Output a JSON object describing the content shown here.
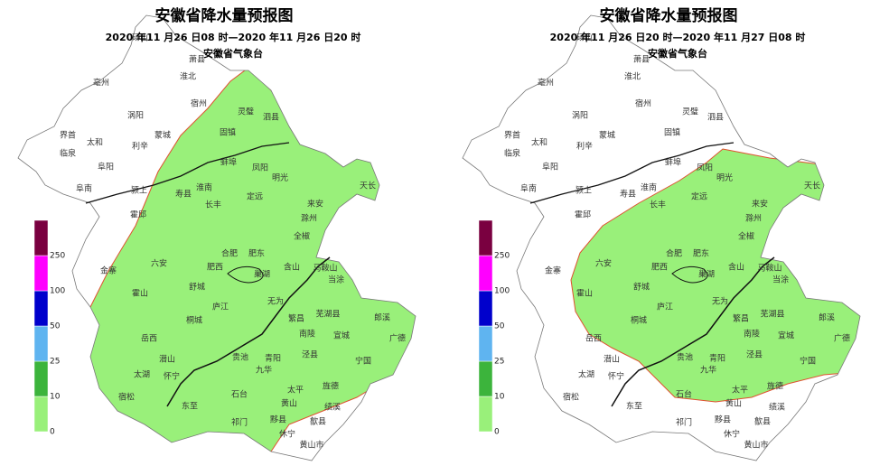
{
  "panels": [
    {
      "title": "安徽省降水量预报图",
      "period": "2020 年11 月26 日08 时—2020 年11 月26 日20 时",
      "issuer": "安徽省气象台"
    },
    {
      "title": "安徽省降水量预报图",
      "period": "2020 年11 月26 日20 时—2020 年11 月27 日08 时",
      "issuer": "安徽省气象台"
    }
  ],
  "legend": {
    "levels": [
      0,
      10,
      25,
      50,
      100,
      250
    ],
    "colors": [
      "#99f07a",
      "#3cb43c",
      "#5fb4f0",
      "#0000cc",
      "#ff00ff",
      "#7a0040"
    ]
  },
  "place_names": [
    "砀山",
    "萧县",
    "淮北",
    "亳州",
    "宿州",
    "涡阳",
    "灵璧",
    "泗县",
    "蒙城",
    "固镇",
    "界首",
    "太和",
    "利辛",
    "临泉",
    "阜阳",
    "蚌埠",
    "凤阳",
    "明光",
    "天长",
    "阜南",
    "颍上",
    "淮南",
    "寿县",
    "定远",
    "长丰",
    "来安",
    "霍邱",
    "滁州",
    "全椒",
    "金寨",
    "六安",
    "合肥",
    "肥东",
    "肥西",
    "含山",
    "马鞍山",
    "巢湖",
    "当涂",
    "霍山",
    "舒城",
    "庐江",
    "无为",
    "郎溪",
    "芜湖县",
    "桐城",
    "繁昌",
    "南陵",
    "广德",
    "岳西",
    "宣城",
    "潜山",
    "贵池",
    "青阳",
    "泾县",
    "宁国",
    "太湖",
    "怀宁",
    "九华",
    "太平",
    "旌德",
    "宿松",
    "石台",
    "黄山",
    "绩溪",
    "东至",
    "祁门",
    "黟县",
    "歙县",
    "休宁",
    "黄山市"
  ]
}
